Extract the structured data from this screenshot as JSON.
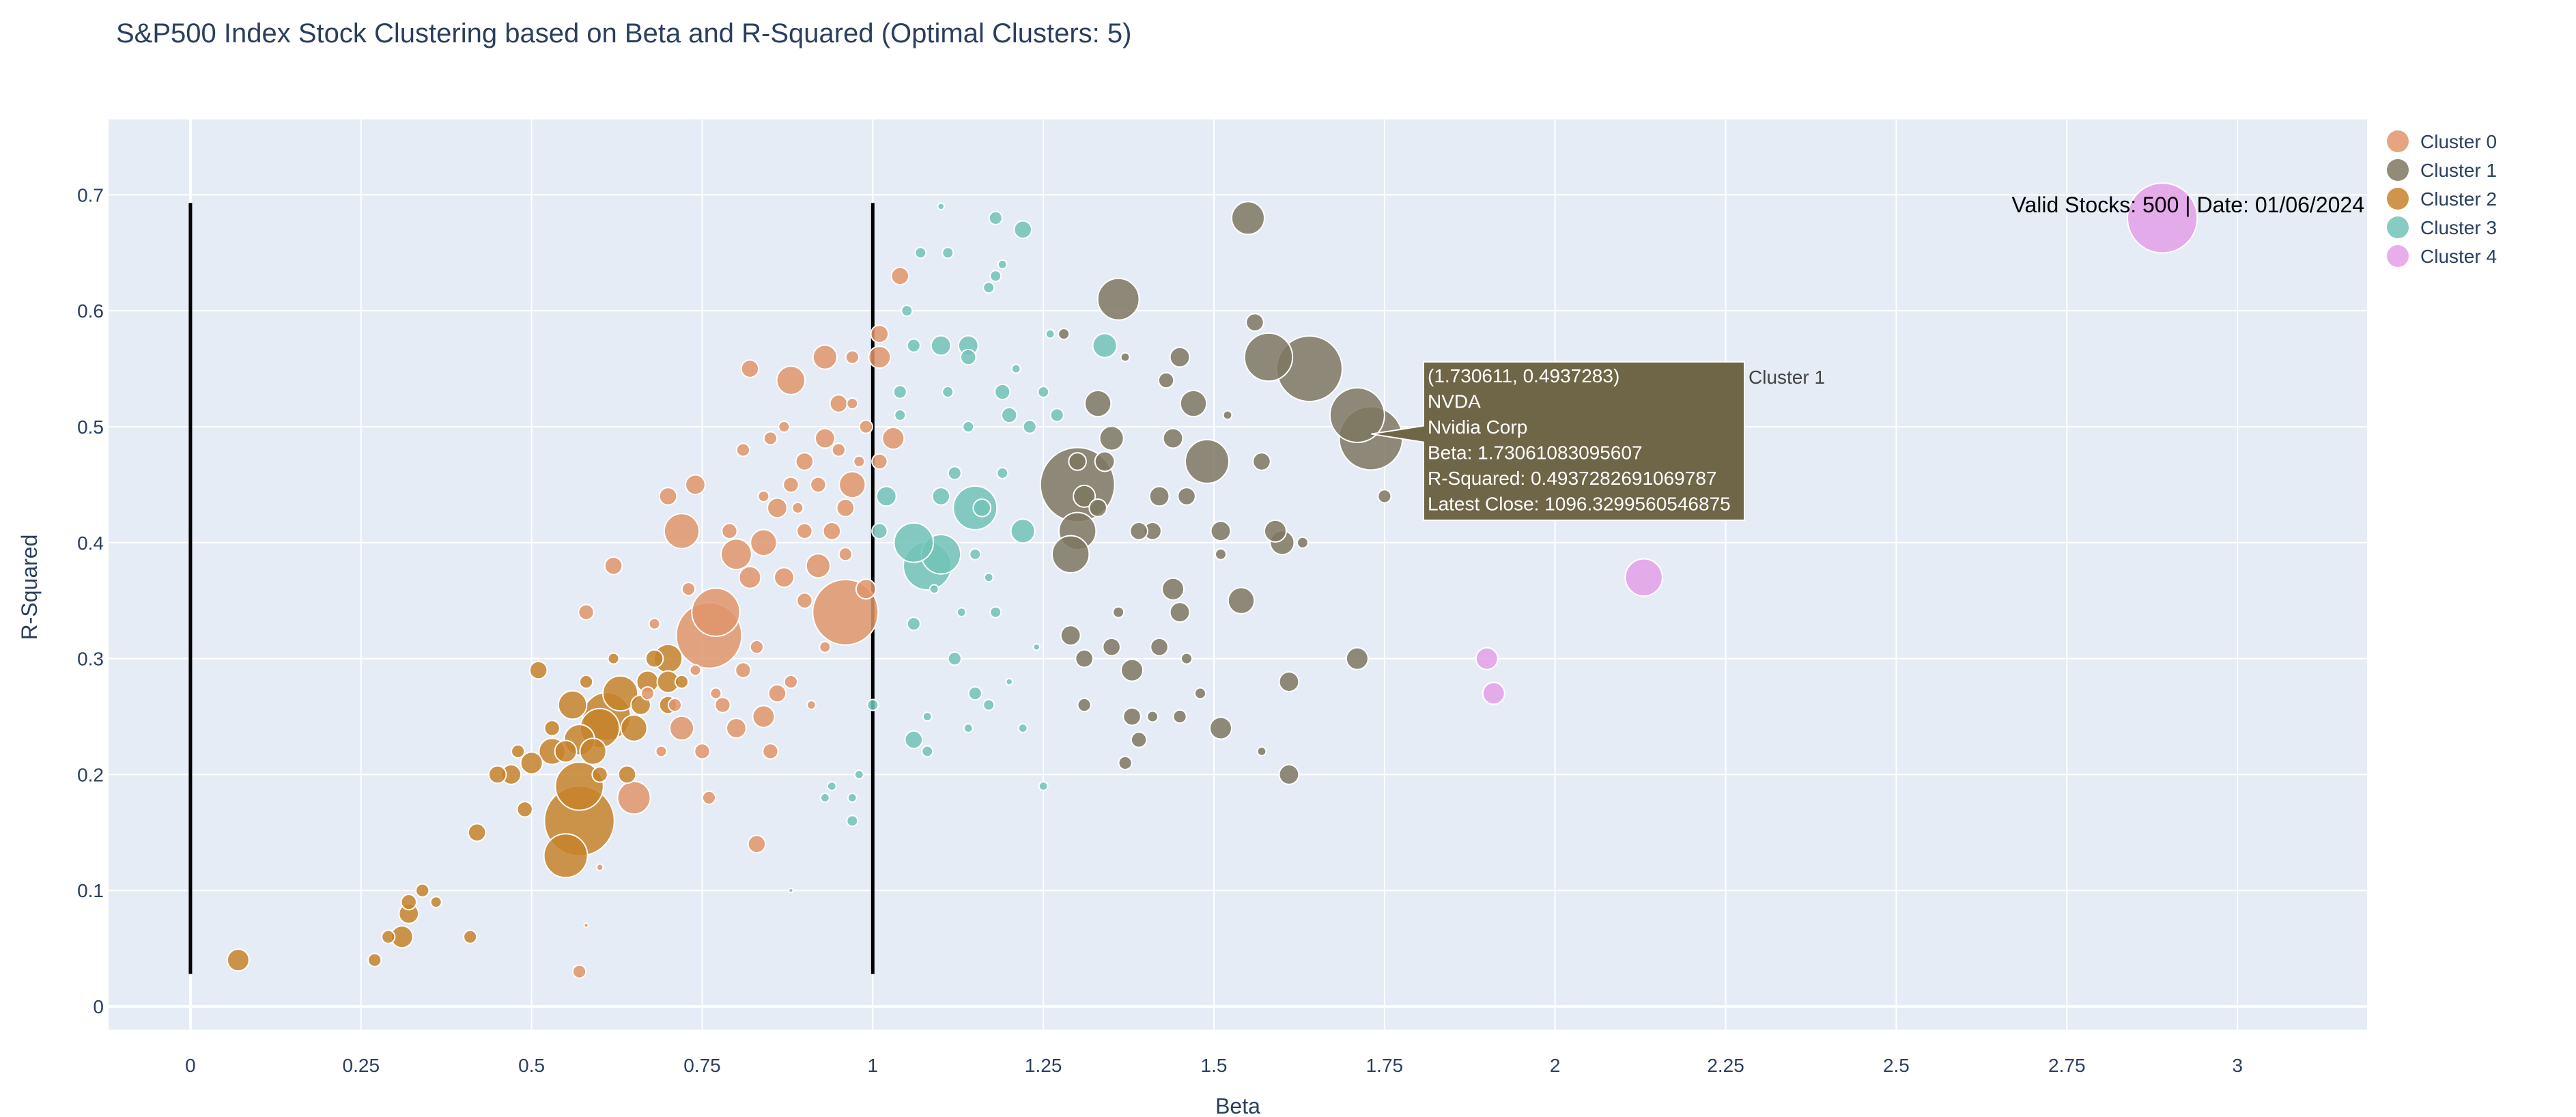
{
  "chart_data": {
    "type": "scatter",
    "title": "S&P500 Index Stock Clustering based on Beta and R-Squared (Optimal Clusters: 5)",
    "xlabel": "Beta",
    "ylabel": "R-Squared",
    "xlim": [
      -0.12,
      3.19
    ],
    "ylim": [
      -0.02,
      0.765
    ],
    "x_ticks": [
      0,
      0.25,
      0.5,
      0.75,
      1,
      1.25,
      1.5,
      1.75,
      2,
      2.25,
      2.5,
      2.75,
      3
    ],
    "x_tick_labels": [
      "0",
      "0.25",
      "0.5",
      "0.75",
      "1",
      "1.25",
      "1.5",
      "1.75",
      "2",
      "2.25",
      "2.5",
      "2.75",
      "3"
    ],
    "y_ticks": [
      0,
      0.1,
      0.2,
      0.3,
      0.4,
      0.5,
      0.6,
      0.7
    ],
    "y_tick_labels": [
      "0",
      "0.1",
      "0.2",
      "0.3",
      "0.4",
      "0.5",
      "0.6",
      "0.7"
    ],
    "grid": true,
    "legend_position": "top-right",
    "annotation": "Valid Stocks: 500 | Date: 01/06/2024",
    "reference_lines": [
      {
        "x": 0,
        "y0": 0.028,
        "y1": 0.693
      },
      {
        "x": 1,
        "y0": 0.028,
        "y1": 0.693
      }
    ],
    "hover": {
      "x": 1.730611,
      "y": 0.4937283,
      "lines": [
        "(1.730611, 0.4937283)",
        "NVDA",
        "Nvidia Corp",
        "Beta: 1.73061083095607",
        "R-Squared: 0.4937282691069787",
        "Latest Close: 1096.3299560546875"
      ],
      "series": "Cluster 1",
      "color": "#6f6547"
    },
    "series": [
      {
        "name": "Cluster 0",
        "color": "#e0956b",
        "points": [
          [
            0.57,
            0.03,
            6
          ],
          [
            0.6,
            0.12,
            3
          ],
          [
            0.58,
            0.07,
            2
          ],
          [
            0.58,
            0.34,
            7
          ],
          [
            0.76,
            0.18,
            6
          ],
          [
            0.75,
            0.22,
            7
          ],
          [
            0.8,
            0.24,
            9
          ],
          [
            0.83,
            0.14,
            8
          ],
          [
            0.85,
            0.22,
            7
          ],
          [
            0.88,
            0.28,
            6
          ],
          [
            0.84,
            0.25,
            10
          ],
          [
            0.86,
            0.27,
            8
          ],
          [
            0.91,
            0.26,
            4
          ],
          [
            0.65,
            0.18,
            15
          ],
          [
            0.62,
            0.38,
            8
          ],
          [
            0.68,
            0.33,
            5
          ],
          [
            0.7,
            0.44,
            8
          ],
          [
            0.72,
            0.41,
            16
          ],
          [
            0.74,
            0.45,
            9
          ],
          [
            0.73,
            0.36,
            6
          ],
          [
            0.76,
            0.32,
            30
          ],
          [
            0.77,
            0.34,
            22
          ],
          [
            0.8,
            0.39,
            14
          ],
          [
            0.82,
            0.37,
            10
          ],
          [
            0.84,
            0.4,
            12
          ],
          [
            0.86,
            0.43,
            9
          ],
          [
            0.88,
            0.45,
            7
          ],
          [
            0.9,
            0.47,
            8
          ],
          [
            0.93,
            0.49,
            9
          ],
          [
            0.96,
            0.43,
            8
          ],
          [
            0.97,
            0.45,
            12
          ],
          [
            0.92,
            0.38,
            11
          ],
          [
            0.94,
            0.41,
            8
          ],
          [
            0.96,
            0.34,
            30
          ],
          [
            0.99,
            0.36,
            9
          ],
          [
            0.95,
            0.52,
            8
          ],
          [
            0.97,
            0.56,
            6
          ],
          [
            0.99,
            0.5,
            6
          ],
          [
            1.01,
            0.47,
            7
          ],
          [
            1.03,
            0.49,
            10
          ],
          [
            1.01,
            0.56,
            10
          ],
          [
            1.01,
            0.58,
            8
          ],
          [
            1.04,
            0.63,
            8
          ],
          [
            0.93,
            0.56,
            11
          ],
          [
            0.88,
            0.54,
            13
          ],
          [
            0.82,
            0.55,
            8
          ],
          [
            0.85,
            0.49,
            6
          ],
          [
            0.84,
            0.44,
            5
          ],
          [
            0.9,
            0.35,
            7
          ],
          [
            0.93,
            0.31,
            5
          ],
          [
            0.78,
            0.26,
            7
          ],
          [
            0.72,
            0.24,
            11
          ],
          [
            0.69,
            0.22,
            5
          ],
          [
            0.71,
            0.26,
            6
          ],
          [
            0.74,
            0.29,
            5
          ],
          [
            0.67,
            0.27,
            6
          ],
          [
            0.98,
            0.47,
            5
          ],
          [
            0.96,
            0.39,
            6
          ],
          [
            0.92,
            0.45,
            7
          ],
          [
            0.95,
            0.48,
            6
          ],
          [
            0.97,
            0.52,
            5
          ],
          [
            0.89,
            0.43,
            5
          ],
          [
            0.87,
            0.5,
            5
          ],
          [
            0.81,
            0.48,
            6
          ],
          [
            0.83,
            0.31,
            6
          ],
          [
            0.87,
            0.37,
            9
          ],
          [
            0.9,
            0.41,
            7
          ],
          [
            0.79,
            0.41,
            7
          ],
          [
            0.81,
            0.29,
            7
          ],
          [
            0.77,
            0.27,
            5
          ]
        ]
      },
      {
        "name": "Cluster 1",
        "color": "#7e7760",
        "points": [
          [
            1.55,
            0.68,
            15
          ],
          [
            1.36,
            0.61,
            19
          ],
          [
            1.58,
            0.56,
            22
          ],
          [
            1.64,
            0.55,
            30
          ],
          [
            1.71,
            0.51,
            25
          ],
          [
            1.73,
            0.49,
            29
          ],
          [
            1.3,
            0.45,
            34
          ],
          [
            1.3,
            0.41,
            17
          ],
          [
            1.29,
            0.39,
            17
          ],
          [
            1.33,
            0.52,
            12
          ],
          [
            1.35,
            0.49,
            11
          ],
          [
            1.3,
            0.47,
            8
          ],
          [
            1.31,
            0.44,
            10
          ],
          [
            1.33,
            0.43,
            8
          ],
          [
            1.34,
            0.47,
            9
          ],
          [
            1.45,
            0.56,
            9
          ],
          [
            1.43,
            0.54,
            7
          ],
          [
            1.47,
            0.52,
            12
          ],
          [
            1.49,
            0.47,
            20
          ],
          [
            1.44,
            0.49,
            9
          ],
          [
            1.46,
            0.44,
            8
          ],
          [
            1.42,
            0.44,
            9
          ],
          [
            1.41,
            0.41,
            8
          ],
          [
            1.39,
            0.41,
            8
          ],
          [
            1.56,
            0.59,
            8
          ],
          [
            1.57,
            0.47,
            8
          ],
          [
            1.51,
            0.41,
            9
          ],
          [
            1.54,
            0.35,
            12
          ],
          [
            1.6,
            0.4,
            11
          ],
          [
            1.59,
            0.41,
            10
          ],
          [
            1.44,
            0.36,
            10
          ],
          [
            1.45,
            0.34,
            9
          ],
          [
            1.42,
            0.31,
            8
          ],
          [
            1.38,
            0.29,
            10
          ],
          [
            1.35,
            0.31,
            8
          ],
          [
            1.31,
            0.3,
            8
          ],
          [
            1.29,
            0.32,
            9
          ],
          [
            1.31,
            0.26,
            6
          ],
          [
            1.38,
            0.25,
            8
          ],
          [
            1.39,
            0.23,
            7
          ],
          [
            1.37,
            0.21,
            6
          ],
          [
            1.41,
            0.25,
            5
          ],
          [
            1.45,
            0.25,
            6
          ],
          [
            1.48,
            0.27,
            5
          ],
          [
            1.51,
            0.24,
            10
          ],
          [
            1.61,
            0.28,
            9
          ],
          [
            1.61,
            0.2,
            9
          ],
          [
            1.71,
            0.3,
            10
          ],
          [
            1.75,
            0.44,
            6
          ],
          [
            1.63,
            0.4,
            5
          ],
          [
            1.51,
            0.39,
            5
          ],
          [
            1.46,
            0.3,
            5
          ],
          [
            1.36,
            0.34,
            5
          ],
          [
            1.57,
            0.22,
            4
          ],
          [
            1.37,
            0.56,
            4
          ],
          [
            1.28,
            0.58,
            5
          ],
          [
            1.52,
            0.51,
            4
          ]
        ]
      },
      {
        "name": "Cluster 2",
        "color": "#c7822a",
        "points": [
          [
            0.07,
            0.04,
            10
          ],
          [
            0.27,
            0.04,
            6
          ],
          [
            0.31,
            0.06,
            10
          ],
          [
            0.29,
            0.06,
            6
          ],
          [
            0.32,
            0.08,
            9
          ],
          [
            0.32,
            0.09,
            7
          ],
          [
            0.34,
            0.1,
            6
          ],
          [
            0.36,
            0.09,
            5
          ],
          [
            0.41,
            0.06,
            6
          ],
          [
            0.42,
            0.15,
            8
          ],
          [
            0.45,
            0.2,
            8
          ],
          [
            0.47,
            0.2,
            9
          ],
          [
            0.49,
            0.17,
            7
          ],
          [
            0.5,
            0.21,
            10
          ],
          [
            0.51,
            0.29,
            8
          ],
          [
            0.53,
            0.22,
            12
          ],
          [
            0.55,
            0.13,
            20
          ],
          [
            0.56,
            0.26,
            13
          ],
          [
            0.57,
            0.16,
            32
          ],
          [
            0.57,
            0.19,
            22
          ],
          [
            0.57,
            0.23,
            14
          ],
          [
            0.59,
            0.22,
            12
          ],
          [
            0.6,
            0.24,
            18
          ],
          [
            0.61,
            0.25,
            22
          ],
          [
            0.63,
            0.27,
            16
          ],
          [
            0.64,
            0.2,
            8
          ],
          [
            0.65,
            0.24,
            12
          ],
          [
            0.66,
            0.26,
            9
          ],
          [
            0.67,
            0.28,
            10
          ],
          [
            0.68,
            0.3,
            8
          ],
          [
            0.7,
            0.3,
            13
          ],
          [
            0.7,
            0.28,
            10
          ],
          [
            0.7,
            0.26,
            8
          ],
          [
            0.72,
            0.28,
            6
          ],
          [
            0.55,
            0.22,
            10
          ],
          [
            0.53,
            0.24,
            7
          ],
          [
            0.6,
            0.2,
            7
          ],
          [
            0.62,
            0.3,
            5
          ],
          [
            0.48,
            0.22,
            6
          ],
          [
            0.58,
            0.28,
            6
          ]
        ]
      },
      {
        "name": "Cluster 3",
        "color": "#72c3b7",
        "points": [
          [
            1.15,
            0.43,
            20
          ],
          [
            1.1,
            0.39,
            18
          ],
          [
            1.08,
            0.38,
            22
          ],
          [
            1.06,
            0.4,
            18
          ],
          [
            1.22,
            0.41,
            11
          ],
          [
            1.34,
            0.57,
            11
          ],
          [
            1.22,
            0.67,
            8
          ],
          [
            1.18,
            0.68,
            6
          ],
          [
            1.14,
            0.57,
            9
          ],
          [
            1.1,
            0.57,
            9
          ],
          [
            1.06,
            0.57,
            6
          ],
          [
            1.04,
            0.53,
            6
          ],
          [
            1.04,
            0.51,
            5
          ],
          [
            1.02,
            0.44,
            9
          ],
          [
            1.01,
            0.41,
            7
          ],
          [
            1.14,
            0.56,
            7
          ],
          [
            1.18,
            0.63,
            5
          ],
          [
            1.17,
            0.62,
            5
          ],
          [
            1.19,
            0.64,
            4
          ],
          [
            1.26,
            0.58,
            4
          ],
          [
            1.21,
            0.55,
            4
          ],
          [
            1.23,
            0.5,
            6
          ],
          [
            1.25,
            0.53,
            5
          ],
          [
            1.27,
            0.51,
            6
          ],
          [
            1.19,
            0.53,
            7
          ],
          [
            1.2,
            0.51,
            7
          ],
          [
            1.16,
            0.43,
            8
          ],
          [
            1.18,
            0.34,
            5
          ],
          [
            1.12,
            0.3,
            6
          ],
          [
            1.15,
            0.27,
            6
          ],
          [
            1.14,
            0.24,
            4
          ],
          [
            1.17,
            0.26,
            5
          ],
          [
            1.08,
            0.25,
            4
          ],
          [
            1.06,
            0.23,
            8
          ],
          [
            1.08,
            0.22,
            5
          ],
          [
            1.0,
            0.26,
            5
          ],
          [
            0.98,
            0.2,
            4
          ],
          [
            0.97,
            0.18,
            4
          ],
          [
            0.97,
            0.16,
            5
          ],
          [
            0.93,
            0.18,
            4
          ],
          [
            0.94,
            0.19,
            4
          ],
          [
            0.88,
            0.1,
            2
          ],
          [
            1.06,
            0.33,
            6
          ],
          [
            1.1,
            0.44,
            8
          ],
          [
            1.12,
            0.46,
            6
          ],
          [
            1.07,
            0.65,
            5
          ],
          [
            1.11,
            0.65,
            5
          ],
          [
            1.1,
            0.69,
            3
          ],
          [
            1.05,
            0.6,
            5
          ],
          [
            1.25,
            0.19,
            4
          ],
          [
            1.22,
            0.24,
            4
          ],
          [
            1.2,
            0.28,
            3
          ],
          [
            1.24,
            0.31,
            3
          ],
          [
            1.13,
            0.34,
            4
          ],
          [
            1.17,
            0.37,
            4
          ],
          [
            1.19,
            0.46,
            5
          ],
          [
            1.14,
            0.5,
            5
          ],
          [
            1.11,
            0.53,
            5
          ],
          [
            1.09,
            0.36,
            4
          ],
          [
            1.15,
            0.39,
            5
          ]
        ]
      },
      {
        "name": "Cluster 4",
        "color": "#e4a0e8",
        "points": [
          [
            2.89,
            0.68,
            32
          ],
          [
            2.13,
            0.37,
            17
          ],
          [
            1.9,
            0.3,
            10
          ],
          [
            1.91,
            0.27,
            10
          ]
        ]
      }
    ]
  }
}
